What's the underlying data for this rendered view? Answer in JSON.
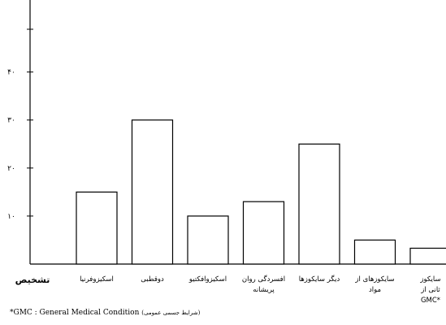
{
  "chart_data": {
    "type": "bar",
    "title": "",
    "xlabel": "تشخیص",
    "ylabel": "",
    "ylim": [
      0,
      55
    ],
    "yticks": [
      10,
      20,
      30,
      40
    ],
    "ytick_labels": [
      "۱۰",
      "۲۰",
      "۳۰",
      "۴۰"
    ],
    "grid": false,
    "categories": [
      [
        "اسکیزوفرنیا"
      ],
      [
        "دوقطبی"
      ],
      [
        "اسکیزوافکتیو"
      ],
      [
        "افسردگی روان",
        "پریشانه"
      ],
      [
        "دیگر سایکوزها"
      ],
      [
        "سایکوزهای از",
        "مواد"
      ],
      [
        "سایکوز",
        "ثانی از",
        "GMC*"
      ]
    ],
    "values": [
      15,
      30,
      10,
      13,
      25,
      5,
      3.3
    ]
  },
  "footnote": {
    "text": "*GMC : General Medical Condition",
    "persian": "(شرایط جسمی عمومی)"
  },
  "colors": {
    "bar_fill": "#ffffff",
    "bar_stroke": "#000000",
    "axis": "#000000"
  }
}
